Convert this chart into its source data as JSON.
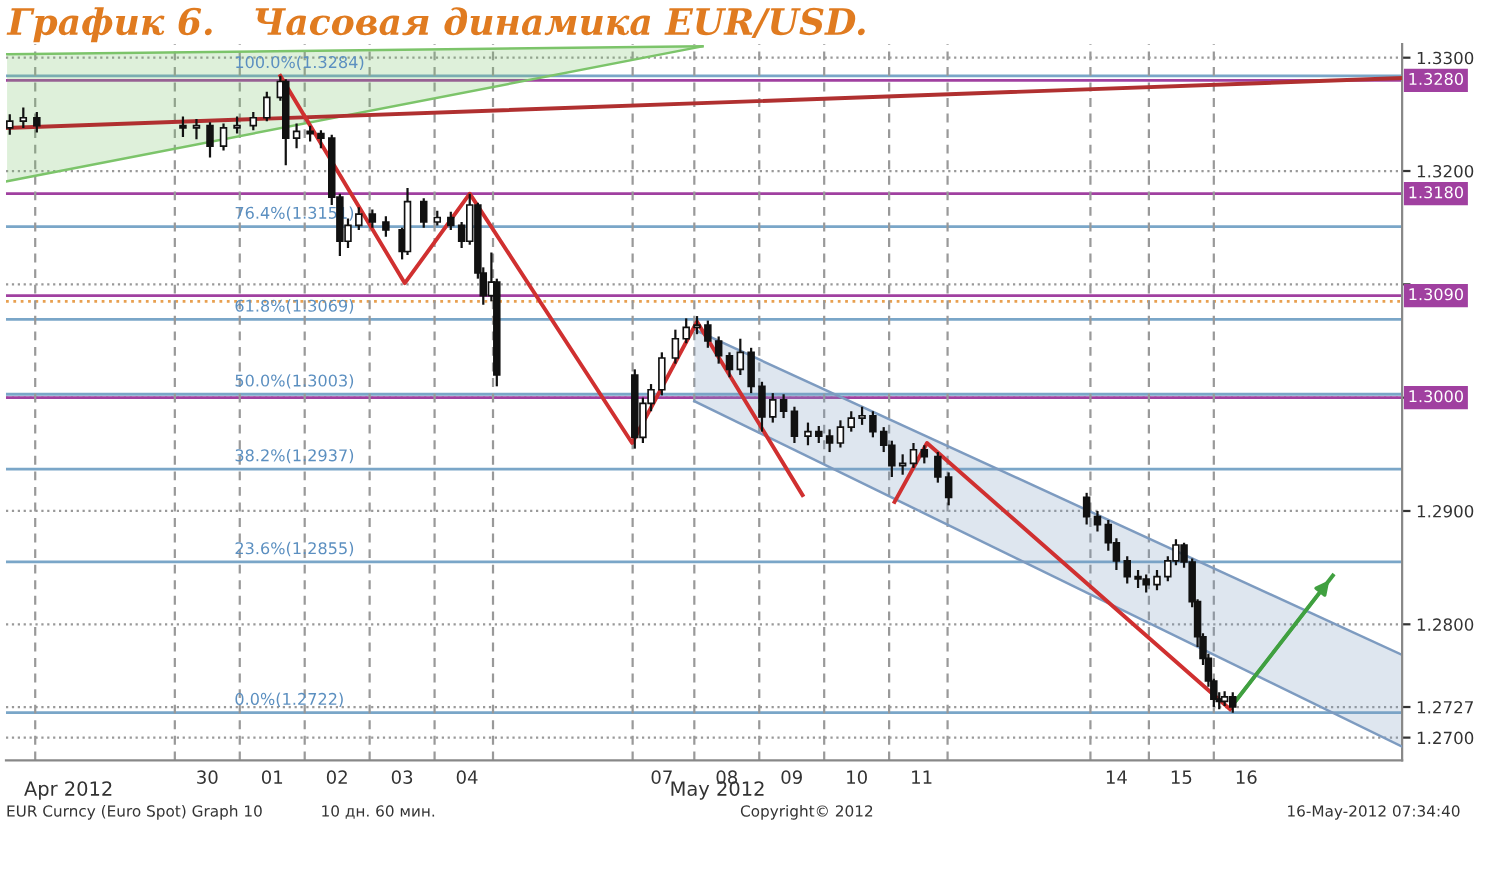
{
  "chart_data": {
    "type": "candlestick",
    "title": "График 6.   Часовая динамика EUR/USD.",
    "x": [
      "2012-04-27T11:00",
      "2012-04-27T16:00",
      "2012-04-27T21:00",
      "2012-04-30T03:00",
      "2012-04-30T08:00",
      "2012-04-30T13:00",
      "2012-04-30T18:00",
      "2012-04-30T23:00",
      "2012-05-01T05:00",
      "2012-05-01T10:00",
      "2012-05-01T15:00",
      "2012-05-01T17:00",
      "2012-05-01T21:00",
      "2012-05-02T02:00",
      "2012-05-02T06:00",
      "2012-05-02T10:00",
      "2012-05-02T13:00",
      "2012-05-02T16:00",
      "2012-05-02T20:00",
      "2012-05-03T01:00",
      "2012-05-03T06:00",
      "2012-05-03T12:00",
      "2012-05-03T14:00",
      "2012-05-03T20:00",
      "2012-05-04T01:00",
      "2012-05-04T06:00",
      "2012-05-04T10:00",
      "2012-05-04T13:00",
      "2012-05-04T16:00",
      "2012-05-04T18:00",
      "2012-05-04T21:00",
      "2012-05-04T23:00",
      "2012-05-07T02:00",
      "2012-05-07T05:00",
      "2012-05-07T08:00",
      "2012-05-07T12:00",
      "2012-05-07T17:00",
      "2012-05-07T21:00",
      "2012-05-08T01:00",
      "2012-05-08T05:00",
      "2012-05-08T09:00",
      "2012-05-08T13:00",
      "2012-05-08T17:00",
      "2012-05-08T21:00",
      "2012-05-09T01:00",
      "2012-05-09T05:00",
      "2012-05-09T09:00",
      "2012-05-09T13:00",
      "2012-05-09T18:00",
      "2012-05-09T22:00",
      "2012-05-10T02:00",
      "2012-05-10T06:00",
      "2012-05-10T10:00",
      "2012-05-10T14:00",
      "2012-05-10T18:00",
      "2012-05-10T22:00",
      "2012-05-11T01:00",
      "2012-05-11T05:00",
      "2012-05-11T09:00",
      "2012-05-11T13:00",
      "2012-05-11T18:00",
      "2012-05-11T22:00",
      "2012-05-14T01:00",
      "2012-05-14T05:00",
      "2012-05-14T09:00",
      "2012-05-14T12:00",
      "2012-05-14T16:00",
      "2012-05-14T20:00",
      "2012-05-14T23:00",
      "2012-05-15T03:00",
      "2012-05-15T07:00",
      "2012-05-15T10:00",
      "2012-05-15T13:00",
      "2012-05-15T16:00",
      "2012-05-15T18:00",
      "2012-05-15T20:00",
      "2012-05-15T22:00",
      "2012-05-16T00:00",
      "2012-05-16T02:00",
      "2012-05-16T04:00",
      "2012-05-16T07:00"
    ],
    "ohlc": [
      [
        1.3238,
        1.325,
        1.3232,
        1.3244
      ],
      [
        1.3244,
        1.3256,
        1.3238,
        1.3247
      ],
      [
        1.3247,
        1.3252,
        1.3234,
        1.324
      ],
      [
        1.324,
        1.3248,
        1.323,
        1.3238
      ],
      [
        1.3238,
        1.3246,
        1.3228,
        1.324
      ],
      [
        1.324,
        1.3243,
        1.3212,
        1.3222
      ],
      [
        1.3222,
        1.3242,
        1.3218,
        1.3238
      ],
      [
        1.3238,
        1.3248,
        1.3233,
        1.324
      ],
      [
        1.324,
        1.3252,
        1.3236,
        1.3247
      ],
      [
        1.3247,
        1.327,
        1.3244,
        1.3265
      ],
      [
        1.3265,
        1.3284,
        1.3262,
        1.3279
      ],
      [
        1.3279,
        1.3281,
        1.3205,
        1.3229
      ],
      [
        1.3229,
        1.3242,
        1.322,
        1.3235
      ],
      [
        1.3235,
        1.324,
        1.3226,
        1.3233
      ],
      [
        1.3233,
        1.3236,
        1.322,
        1.3229
      ],
      [
        1.3229,
        1.3232,
        1.317,
        1.3177
      ],
      [
        1.3177,
        1.318,
        1.3125,
        1.3138
      ],
      [
        1.3138,
        1.3158,
        1.3132,
        1.3152
      ],
      [
        1.3152,
        1.3168,
        1.3148,
        1.3162
      ],
      [
        1.3162,
        1.3166,
        1.315,
        1.3155
      ],
      [
        1.3155,
        1.316,
        1.3142,
        1.3148
      ],
      [
        1.3148,
        1.315,
        1.3122,
        1.3129
      ],
      [
        1.3129,
        1.3185,
        1.3126,
        1.3173
      ],
      [
        1.3173,
        1.3176,
        1.315,
        1.3155
      ],
      [
        1.3155,
        1.3165,
        1.3152,
        1.3159
      ],
      [
        1.3159,
        1.3164,
        1.3148,
        1.3152
      ],
      [
        1.3152,
        1.3155,
        1.3132,
        1.3138
      ],
      [
        1.3138,
        1.318,
        1.3135,
        1.317
      ],
      [
        1.317,
        1.3172,
        1.3105,
        1.311
      ],
      [
        1.311,
        1.3115,
        1.3082,
        1.309
      ],
      [
        1.309,
        1.3128,
        1.3085,
        1.3102
      ],
      [
        1.3102,
        1.3105,
        1.301,
        1.302
      ],
      [
        1.302,
        1.3025,
        1.2955,
        1.2965
      ],
      [
        1.2965,
        1.3,
        1.296,
        1.2995
      ],
      [
        1.2995,
        1.3012,
        1.2988,
        1.3007
      ],
      [
        1.3007,
        1.304,
        1.3002,
        1.3035
      ],
      [
        1.3035,
        1.306,
        1.303,
        1.3052
      ],
      [
        1.3052,
        1.307,
        1.3048,
        1.3062
      ],
      [
        1.3062,
        1.3072,
        1.3056,
        1.3064
      ],
      [
        1.3064,
        1.3068,
        1.3044,
        1.305
      ],
      [
        1.305,
        1.3054,
        1.303,
        1.3037
      ],
      [
        1.3037,
        1.304,
        1.3018,
        1.3025
      ],
      [
        1.3025,
        1.3052,
        1.302,
        1.304
      ],
      [
        1.304,
        1.3044,
        1.3004,
        1.301
      ],
      [
        1.301,
        1.3014,
        1.297,
        1.2983
      ],
      [
        1.2983,
        1.3004,
        1.2978,
        1.2998
      ],
      [
        1.2998,
        1.3003,
        1.2982,
        1.2988
      ],
      [
        1.2988,
        1.2992,
        1.296,
        1.2966
      ],
      [
        1.2966,
        1.2978,
        1.2958,
        1.297
      ],
      [
        1.297,
        1.2975,
        1.296,
        1.2966
      ],
      [
        1.2966,
        1.2972,
        1.2952,
        1.296
      ],
      [
        1.296,
        1.298,
        1.2956,
        1.2974
      ],
      [
        1.2974,
        1.2988,
        1.297,
        1.2982
      ],
      [
        1.2982,
        1.2992,
        1.2976,
        1.2984
      ],
      [
        1.2984,
        1.2988,
        1.2965,
        1.297
      ],
      [
        1.297,
        1.2974,
        1.2952,
        1.2958
      ],
      [
        1.2958,
        1.2962,
        1.293,
        1.294
      ],
      [
        1.294,
        1.295,
        1.2932,
        1.2942
      ],
      [
        1.2942,
        1.296,
        1.2938,
        1.2954
      ],
      [
        1.2954,
        1.2958,
        1.2942,
        1.2948
      ],
      [
        1.2948,
        1.2952,
        1.2925,
        1.293
      ],
      [
        1.293,
        1.2934,
        1.2905,
        1.2912
      ],
      [
        1.2912,
        1.2916,
        1.2888,
        1.2895
      ],
      [
        1.2895,
        1.29,
        1.2882,
        1.2888
      ],
      [
        1.2888,
        1.2892,
        1.2865,
        1.2872
      ],
      [
        1.2872,
        1.2876,
        1.2848,
        1.2856
      ],
      [
        1.2856,
        1.286,
        1.2836,
        1.2842
      ],
      [
        1.2842,
        1.2848,
        1.2832,
        1.284
      ],
      [
        1.284,
        1.2844,
        1.2828,
        1.2835
      ],
      [
        1.2835,
        1.2848,
        1.283,
        1.2842
      ],
      [
        1.2842,
        1.286,
        1.2838,
        1.2856
      ],
      [
        1.2856,
        1.2875,
        1.2852,
        1.287
      ],
      [
        1.287,
        1.2872,
        1.285,
        1.2855
      ],
      [
        1.2855,
        1.2858,
        1.2815,
        1.282
      ],
      [
        1.282,
        1.2822,
        1.278,
        1.2789
      ],
      [
        1.2789,
        1.2792,
        1.2764,
        1.277
      ],
      [
        1.277,
        1.2774,
        1.2745,
        1.275
      ],
      [
        1.275,
        1.2752,
        1.2727,
        1.2734
      ],
      [
        1.2734,
        1.274,
        1.2725,
        1.2732
      ],
      [
        1.2732,
        1.2741,
        1.2728,
        1.2736
      ],
      [
        1.2736,
        1.274,
        1.2722,
        1.2727
      ]
    ],
    "series": [
      {
        "type": "line",
        "color": "#7cc46a",
        "x": [
          "2012-04-27T10:00",
          "2012-05-08T03:00"
        ],
        "values": [
          1.3303,
          1.331
        ],
        "upper": [
          1.3303,
          1.331
        ],
        "lower": [
          1.3191,
          1.331
        ]
      },
      {
        "type": "line",
        "color": "#7d9bc0",
        "x": [
          "2012-05-08T00:00",
          "2012-05-18T21:36"
        ],
        "values": [
          1.306,
          1.2773
        ],
        "upper": [
          1.306,
          1.2773
        ],
        "lower": [
          1.2997,
          1.2692
        ]
      },
      {
        "type": "line",
        "color": "#7cc46a",
        "x": [
          "2012-04-27T10:00",
          "2012-05-08T03:00"
        ],
        "values": [
          1.3191,
          1.331
        ]
      },
      {
        "type": "line",
        "color": "#7d9bc0",
        "x": [
          "2012-05-08T00:00",
          "2012-05-18T21:36"
        ],
        "values": [
          1.2997,
          1.2692
        ]
      },
      {
        "type": "line",
        "color": "#b03030",
        "x": [
          "2012-04-27T09:36",
          "2012-05-18T21:36"
        ],
        "values": [
          1.3238,
          1.3282
        ]
      },
      {
        "type": "line",
        "color": "#d03030",
        "x": [
          "2012-05-01T15:00",
          "2012-05-03T13:00",
          "2012-05-04T13:00",
          "2012-05-07T01:00",
          "2012-05-08T01:00",
          "2012-05-09T16:00",
          null,
          "2012-05-11T02:00",
          "2012-05-11T14:00",
          "2012-05-16T06:00"
        ],
        "values": [
          1.3284,
          1.3101,
          1.318,
          1.296,
          1.3067,
          1.2914,
          null,
          1.2908,
          1.296,
          1.2725
        ]
      },
      {
        "type": "line",
        "color": "#40a040",
        "x": [
          "2012-05-16T07:00",
          "2012-05-17T20:00"
        ],
        "values": [
          1.2729,
          1.2843
        ]
      }
    ],
    "xlim": [
      "2012-04-27T09:36",
      "2012-05-18T21:36"
    ],
    "ylim": [
      1.268,
      1.3312
    ],
    "xticks": [
      {
        "value": "2012-04-30T12:00",
        "label": "30"
      },
      {
        "value": "2012-05-01T12:00",
        "label": "01"
      },
      {
        "value": "2012-05-02T12:00",
        "label": "02"
      },
      {
        "value": "2012-05-03T12:00",
        "label": "03"
      },
      {
        "value": "2012-05-04T12:00",
        "label": "04"
      },
      {
        "value": "2012-05-07T12:00",
        "label": "07"
      },
      {
        "value": "2012-05-08T12:00",
        "label": "08"
      },
      {
        "value": "2012-05-09T12:00",
        "label": "09"
      },
      {
        "value": "2012-05-10T12:00",
        "label": "10"
      },
      {
        "value": "2012-05-11T12:00",
        "label": "11"
      },
      {
        "value": "2012-05-14T12:00",
        "label": "14"
      },
      {
        "value": "2012-05-15T12:00",
        "label": "15"
      },
      {
        "value": "2012-05-16T12:00",
        "label": "16"
      }
    ],
    "yticks": [
      {
        "value": 1.33,
        "label": "1.3300"
      },
      {
        "value": 1.32,
        "label": "1.3200"
      },
      {
        "value": 1.31,
        "label": null
      },
      {
        "value": 1.3,
        "label": null
      },
      {
        "value": 1.29,
        "label": "1.2900"
      },
      {
        "value": 1.28,
        "label": "1.2800"
      },
      {
        "value": 1.2727,
        "label": "1.2727"
      },
      {
        "value": 1.27,
        "label": "1.2700"
      }
    ],
    "grid": "y",
    "ref_lines": [
      {
        "axis": "y",
        "value": 1.3284,
        "color": "#7aa6c8"
      },
      {
        "axis": "y",
        "value": 1.3151,
        "color": "#7aa6c8"
      },
      {
        "axis": "y",
        "value": 1.3069,
        "color": "#7aa6c8"
      },
      {
        "axis": "y",
        "value": 1.3003,
        "color": "#7aa6c8"
      },
      {
        "axis": "y",
        "value": 1.2937,
        "color": "#7aa6c8"
      },
      {
        "axis": "y",
        "value": 1.2855,
        "color": "#7aa6c8"
      },
      {
        "axis": "y",
        "value": 1.2722,
        "color": "#7aa6c8"
      },
      {
        "axis": "y",
        "value": 1.328,
        "label": "1.3280",
        "color": "#a040a0"
      },
      {
        "axis": "y",
        "value": 1.318,
        "label": "1.3180",
        "color": "#a040a0"
      },
      {
        "axis": "y",
        "value": 1.309,
        "label": "1.3090",
        "color": "#a040a0"
      },
      {
        "axis": "y",
        "value": 1.3,
        "label": "1.3000",
        "color": "#a040a0"
      },
      {
        "axis": "y",
        "value": 1.3085,
        "color": "#e8a050",
        "line_style": "dotted"
      },
      {
        "axis": "x",
        "value": "2012-04-27T20:24",
        "color": "#999999",
        "line_style": "dashed"
      },
      {
        "axis": "x",
        "value": "2012-04-30",
        "color": "#999999",
        "line_style": "dashed"
      },
      {
        "axis": "x",
        "value": "2012-05-01",
        "color": "#999999",
        "line_style": "dashed"
      },
      {
        "axis": "x",
        "value": "2012-05-02",
        "color": "#999999",
        "line_style": "dashed"
      },
      {
        "axis": "x",
        "value": "2012-05-03",
        "color": "#999999",
        "line_style": "dashed"
      },
      {
        "axis": "x",
        "value": "2012-05-04",
        "color": "#999999",
        "line_style": "dashed"
      },
      {
        "axis": "x",
        "value": "2012-05-04T21:36",
        "color": "#999999",
        "line_style": "dashed"
      },
      {
        "axis": "x",
        "value": "2012-05-07T01:12",
        "color": "#999999",
        "line_style": "dashed"
      },
      {
        "axis": "x",
        "value": "2012-05-08",
        "color": "#999999",
        "line_style": "dashed"
      },
      {
        "axis": "x",
        "value": "2012-05-09",
        "color": "#999999",
        "line_style": "dashed"
      },
      {
        "axis": "x",
        "value": "2012-05-10",
        "color": "#999999",
        "line_style": "dashed"
      },
      {
        "axis": "x",
        "value": "2012-05-11",
        "color": "#999999",
        "line_style": "dashed"
      },
      {
        "axis": "x",
        "value": "2012-05-11T21:36",
        "color": "#999999",
        "line_style": "dashed"
      },
      {
        "axis": "x",
        "value": "2012-05-14T02:24",
        "color": "#999999",
        "line_style": "dashed"
      },
      {
        "axis": "x",
        "value": "2012-05-15",
        "color": "#999999",
        "line_style": "dashed"
      },
      {
        "axis": "x",
        "value": "2012-05-16",
        "color": "#999999",
        "line_style": "dashed"
      }
    ],
    "annotations": [
      {
        "text": "100.0%(1.3284)",
        "x": "2012-04-30T22:00",
        "y": 1.3284
      },
      {
        "text": "76.4%(1.3151)",
        "x": "2012-04-30T22:00",
        "y": 1.3151
      },
      {
        "text": "61.8%(1.3069)",
        "x": "2012-04-30T22:00",
        "y": 1.3069
      },
      {
        "text": "50.0%(1.3003)",
        "x": "2012-04-30T22:00",
        "y": 1.3003
      },
      {
        "text": "38.2%(1.2937)",
        "x": "2012-04-30T22:00",
        "y": 1.2937
      },
      {
        "text": "23.6%(1.2855)",
        "x": "2012-04-30T22:00",
        "y": 1.2855
      },
      {
        "text": "0.0%(1.2722)",
        "x": "2012-04-30T22:00",
        "y": 1.2722
      },
      "Apr 2012",
      "May 2012",
      "EUR Curncy (Euro Spot) Graph 10",
      "10 дн. 60 мин.",
      "Copyright© 2012",
      "16-May-2012 07:34:40"
    ]
  }
}
